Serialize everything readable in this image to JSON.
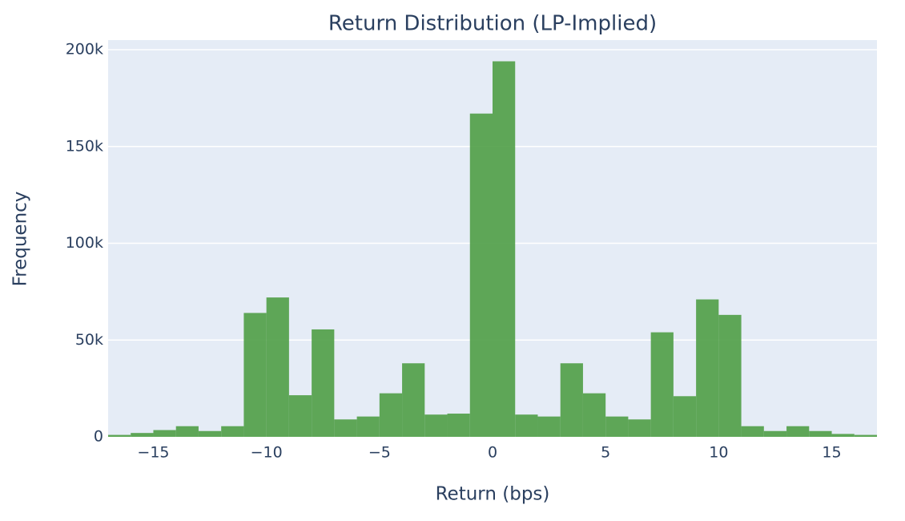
{
  "chart_data": {
    "type": "histogram",
    "title": "Return Distribution (LP-Implied)",
    "x_label": "Return (bps)",
    "y_label": "Frequency",
    "bins": [
      -17,
      -16,
      -15,
      -14,
      -13,
      -12,
      -11,
      -10,
      -9,
      -8,
      -7,
      -6,
      -5,
      -4,
      -3,
      -2,
      -1,
      0,
      1,
      2,
      3,
      4,
      5,
      6,
      7,
      8,
      9,
      10,
      11,
      12,
      13,
      14,
      15,
      16,
      17
    ],
    "values": [
      1000,
      2000,
      3500,
      5500,
      3000,
      5500,
      64000,
      72000,
      21500,
      55500,
      9000,
      10500,
      22500,
      38000,
      11500,
      12000,
      167000,
      194000,
      11500,
      10500,
      38000,
      22500,
      10500,
      9000,
      54000,
      21000,
      71000,
      63000,
      5500,
      3000,
      5500,
      3000,
      1500,
      1000
    ],
    "color": "#4f9e46",
    "xlim": [
      -17,
      17
    ],
    "xticks": [
      {
        "value": -15,
        "label": "−15"
      },
      {
        "value": -10,
        "label": "−10"
      },
      {
        "value": -5,
        "label": "−5"
      },
      0,
      5,
      10,
      15
    ],
    "ylim": [
      0,
      200000
    ],
    "yticks": [
      0,
      {
        "value": 50000,
        "label": "50k"
      },
      {
        "value": 100000,
        "label": "100k"
      },
      {
        "value": 150000,
        "label": "150k"
      },
      {
        "value": 200000,
        "label": "200k"
      }
    ],
    "grid": true
  }
}
